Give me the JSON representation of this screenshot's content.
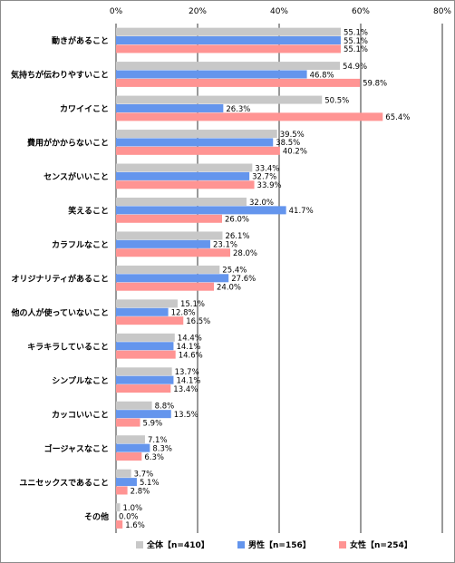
{
  "chart_data": {
    "type": "bar",
    "orientation": "horizontal",
    "title": "",
    "xlabel": "",
    "ylabel": "",
    "xlim": [
      0,
      80
    ],
    "ticks": [
      "0%",
      "20%",
      "40%",
      "60%",
      "80%"
    ],
    "tick_values": [
      0,
      20,
      40,
      60,
      80
    ],
    "grid": true,
    "legend_position": "bottom",
    "categories": [
      "動きがあること",
      "気持ちが伝わりやすいこと",
      "カワイイこと",
      "費用がかからないこと",
      "センスがいいこと",
      "笑えること",
      "カラフルなこと",
      "オリジナリティがあること",
      "他の人が使っていないこと",
      "キラキラしていること",
      "シンプルなこと",
      "カッコいいこと",
      "ゴージャスなこと",
      "ユニセックスであること",
      "その他"
    ],
    "series": [
      {
        "name": "全体【n=410】",
        "color": "#c8c8c8",
        "values": [
          55.1,
          54.9,
          50.5,
          39.5,
          33.4,
          32.0,
          26.1,
          25.4,
          15.1,
          14.4,
          13.7,
          8.8,
          7.1,
          3.7,
          1.0
        ],
        "labels": [
          "55.1%",
          "54.9%",
          "50.5%",
          "39.5%",
          "33.4%",
          "32.0%",
          "26.1%",
          "25.4%",
          "15.1%",
          "14.4%",
          "13.7%",
          "8.8%",
          "7.1%",
          "3.7%",
          "1.0%"
        ]
      },
      {
        "name": "男性【n=156】",
        "color": "#6495ed",
        "values": [
          55.1,
          46.8,
          26.3,
          38.5,
          32.7,
          41.7,
          23.1,
          27.6,
          12.8,
          14.1,
          14.1,
          13.5,
          8.3,
          5.1,
          0.0
        ],
        "labels": [
          "55.1%",
          "46.8%",
          "26.3%",
          "38.5%",
          "32.7%",
          "41.7%",
          "23.1%",
          "27.6%",
          "12.8%",
          "14.1%",
          "14.1%",
          "13.5%",
          "8.3%",
          "5.1%",
          "0.0%"
        ]
      },
      {
        "name": "女性【n=254】",
        "color": "#ff9493",
        "values": [
          55.1,
          59.8,
          65.4,
          40.2,
          33.9,
          26.0,
          28.0,
          24.0,
          16.5,
          14.6,
          13.4,
          5.9,
          6.3,
          2.8,
          1.6
        ],
        "labels": [
          "55.1%",
          "59.8%",
          "65.4%",
          "40.2%",
          "33.9%",
          "26.0%",
          "28.0%",
          "24.0%",
          "16.5%",
          "14.6%",
          "13.4%",
          "5.9%",
          "6.3%",
          "2.8%",
          "1.6%"
        ]
      }
    ]
  }
}
